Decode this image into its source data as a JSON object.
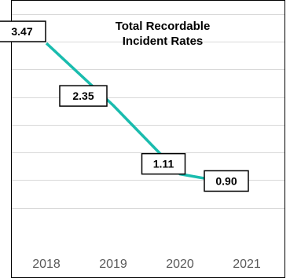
{
  "chart_data": {
    "type": "line",
    "title_lines": [
      "Total Recordable",
      "Incident Rates"
    ],
    "categories": [
      "2018",
      "2019",
      "2020",
      "2021"
    ],
    "series": [
      {
        "values": [
          3.47,
          2.35,
          1.11,
          0.9
        ],
        "labels": [
          "3.47",
          "2.35",
          "1.11",
          "0.90"
        ]
      }
    ],
    "ylim": [
      0,
      4.25
    ],
    "grid": true,
    "colors": {
      "line": "#1abcae",
      "grid": "#d9d9d9",
      "tick_text": "#595959"
    }
  }
}
